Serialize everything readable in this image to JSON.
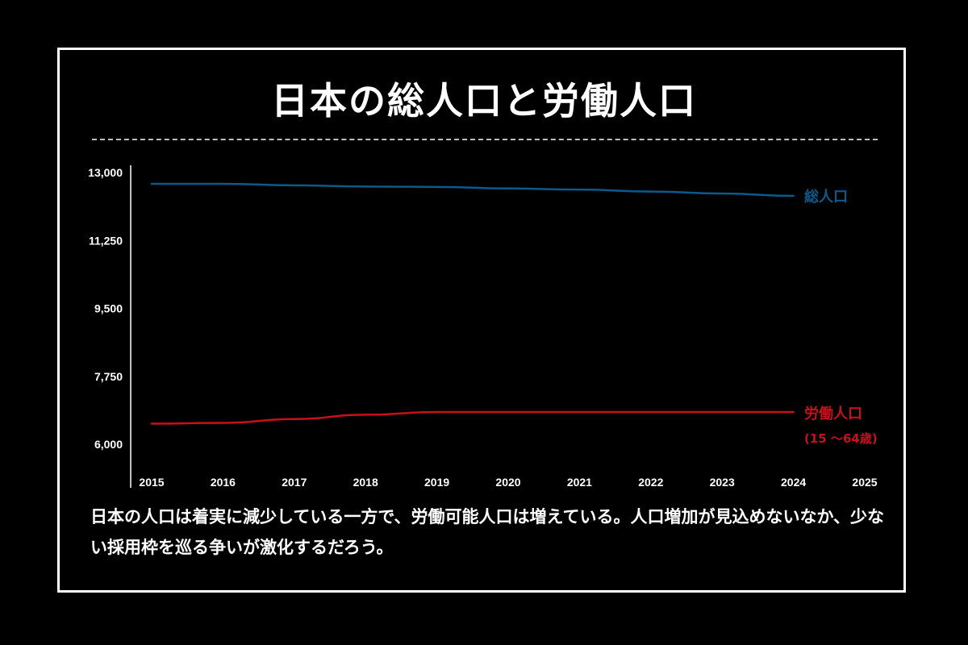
{
  "title": "日本の総人口と労働人口",
  "caption": "日本の人口は着実に減少している一方で、労働可能人口は増えている。人口増加が見込めないなか、少ない採用枠を巡る争いが激化するだろう。",
  "colors": {
    "total_population": "#0b5a8c",
    "labor_population": "#c8101c",
    "background": "#000000",
    "frame": "#ffffff"
  },
  "chart_data": {
    "type": "line",
    "title": "日本の総人口と労働人口",
    "x": [
      "2015",
      "2016",
      "2017",
      "2018",
      "2019",
      "2020",
      "2021",
      "2022",
      "2023",
      "2024",
      "2025"
    ],
    "y_ticks": [
      "13,000",
      "11,250",
      "9,500",
      "7,750",
      "6,000"
    ],
    "ylim": [
      6000,
      13000
    ],
    "grid": false,
    "series": [
      {
        "name": "総人口",
        "values": [
          12710,
          12710,
          12670,
          12640,
          12630,
          12590,
          12560,
          12510,
          12460,
          12400,
          null
        ]
      },
      {
        "name": "労働人口",
        "sublabel": "(15 〜64歳)",
        "values": [
          6530,
          6550,
          6650,
          6760,
          6830,
          6830,
          6830,
          6830,
          6830,
          6830,
          null
        ]
      }
    ]
  }
}
